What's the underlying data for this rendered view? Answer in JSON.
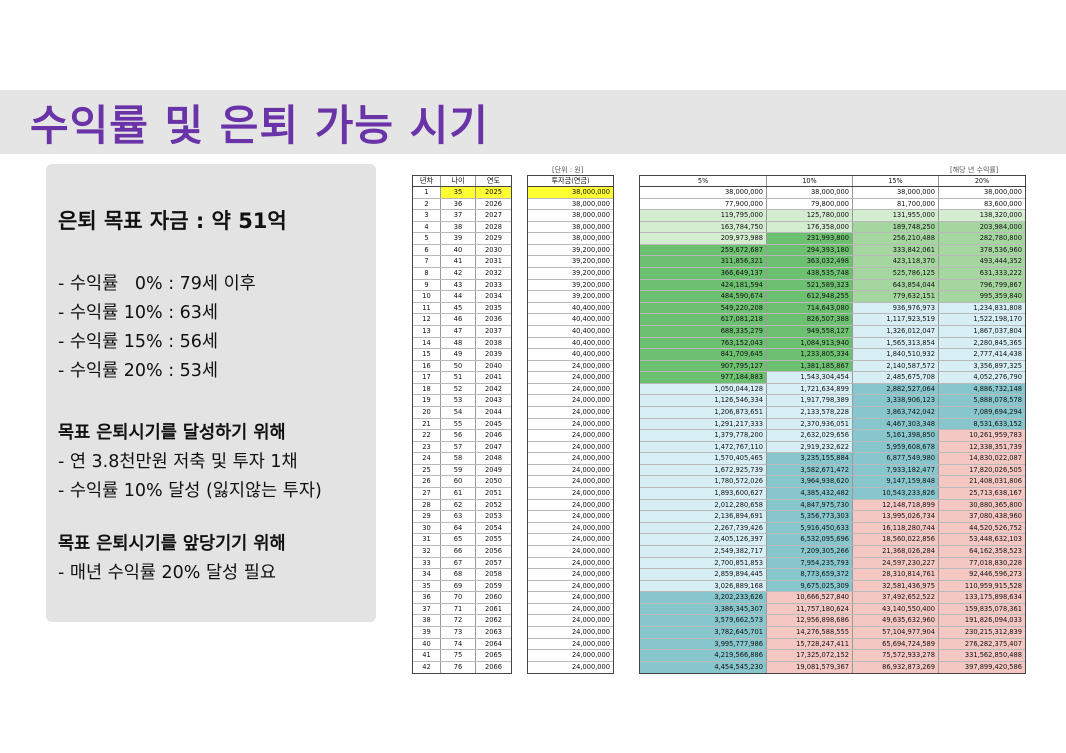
{
  "title": "수익률 및 은퇴 가능 시기",
  "summary": {
    "heading": "은퇴 목표 자금 : 약 51억",
    "lines": [
      "- 수익률   0% : 79세 이후",
      "- 수익률 10% : 63세",
      "- 수익률 15% : 56세",
      "- 수익률 20% : 53세"
    ],
    "section1_title": "목표 은퇴시기를 달성하기 위해",
    "section1_items": [
      "- 연 3.8천만원 저축 및 투자 1채",
      "- 수익률 10% 달성 (잃지않는 투자)"
    ],
    "section2_title": "목표 은퇴시기를 앞당기기 위해",
    "section2_items": [
      "- 매년 수익률 20% 달성 필요"
    ]
  },
  "table": {
    "unit_note": "[단위 : 원]",
    "right_note": "[해당 년 수익률]",
    "headers": {
      "year": "년차",
      "age": "나이",
      "cal_year": "연도",
      "invest": "투자금(연금)",
      "r5": "5%",
      "r10": "10%",
      "r15": "15%",
      "r20": "20%"
    },
    "colors": {
      "highlight_yellow": "#ffff33",
      "green_strong": "#6cc070",
      "green_mid": "#a5d6a0",
      "green_light": "#d4ecd0",
      "blue_light": "#d7eef4",
      "teal": "#87c6cc",
      "pink": "#f4c7c3"
    },
    "rows": [
      [
        "1",
        "35",
        "2025",
        "38,000,000",
        "38,000,000",
        "38,000,000",
        "38,000,000",
        "38,000,000"
      ],
      [
        "2",
        "36",
        "2026",
        "38,000,000",
        "77,900,000",
        "79,800,000",
        "81,700,000",
        "83,600,000"
      ],
      [
        "3",
        "37",
        "2027",
        "38,000,000",
        "119,795,000",
        "125,780,000",
        "131,955,000",
        "138,320,000"
      ],
      [
        "4",
        "38",
        "2028",
        "38,000,000",
        "163,784,750",
        "176,358,000",
        "189,748,250",
        "203,984,000"
      ],
      [
        "5",
        "39",
        "2029",
        "38,000,000",
        "209,973,988",
        "231,993,800",
        "256,210,488",
        "282,780,800"
      ],
      [
        "6",
        "40",
        "2030",
        "39,200,000",
        "259,672,687",
        "294,393,180",
        "333,842,061",
        "378,536,960"
      ],
      [
        "7",
        "41",
        "2031",
        "39,200,000",
        "311,856,321",
        "363,032,498",
        "423,118,370",
        "493,444,352"
      ],
      [
        "8",
        "42",
        "2032",
        "39,200,000",
        "366,649,137",
        "438,535,748",
        "525,786,125",
        "631,333,222"
      ],
      [
        "9",
        "43",
        "2033",
        "39,200,000",
        "424,181,594",
        "521,589,323",
        "643,854,044",
        "796,799,867"
      ],
      [
        "10",
        "44",
        "2034",
        "39,200,000",
        "484,590,674",
        "612,948,255",
        "779,632,151",
        "995,359,840"
      ],
      [
        "11",
        "45",
        "2035",
        "40,400,000",
        "549,220,208",
        "714,643,080",
        "936,976,973",
        "1,234,831,808"
      ],
      [
        "12",
        "46",
        "2036",
        "40,400,000",
        "617,081,218",
        "826,507,388",
        "1,117,923,519",
        "1,522,198,170"
      ],
      [
        "13",
        "47",
        "2037",
        "40,400,000",
        "688,335,279",
        "949,558,127",
        "1,326,012,047",
        "1,867,037,804"
      ],
      [
        "14",
        "48",
        "2038",
        "40,400,000",
        "763,152,043",
        "1,084,913,940",
        "1,565,313,854",
        "2,280,845,365"
      ],
      [
        "15",
        "49",
        "2039",
        "40,400,000",
        "841,709,645",
        "1,233,805,334",
        "1,840,510,932",
        "2,777,414,438"
      ],
      [
        "16",
        "50",
        "2040",
        "24,000,000",
        "907,795,127",
        "1,381,185,867",
        "2,140,587,572",
        "3,356,897,325"
      ],
      [
        "17",
        "51",
        "2041",
        "24,000,000",
        "977,184,883",
        "1,543,304,454",
        "2,485,675,708",
        "4,052,276,790"
      ],
      [
        "18",
        "52",
        "2042",
        "24,000,000",
        "1,050,044,128",
        "1,721,634,899",
        "2,882,527,064",
        "4,886,732,148"
      ],
      [
        "19",
        "53",
        "2043",
        "24,000,000",
        "1,126,546,334",
        "1,917,798,389",
        "3,338,906,123",
        "5,888,078,578"
      ],
      [
        "20",
        "54",
        "2044",
        "24,000,000",
        "1,206,873,651",
        "2,133,578,228",
        "3,863,742,042",
        "7,089,694,294"
      ],
      [
        "21",
        "55",
        "2045",
        "24,000,000",
        "1,291,217,333",
        "2,370,936,051",
        "4,467,303,348",
        "8,531,633,152"
      ],
      [
        "22",
        "56",
        "2046",
        "24,000,000",
        "1,379,778,200",
        "2,632,029,656",
        "5,161,398,850",
        "10,261,959,783"
      ],
      [
        "23",
        "57",
        "2047",
        "24,000,000",
        "1,472,767,110",
        "2,919,232,622",
        "5,959,608,678",
        "12,338,351,739"
      ],
      [
        "24",
        "58",
        "2048",
        "24,000,000",
        "1,570,405,465",
        "3,235,155,884",
        "6,877,549,980",
        "14,830,022,087"
      ],
      [
        "25",
        "59",
        "2049",
        "24,000,000",
        "1,672,925,739",
        "3,582,671,472",
        "7,933,182,477",
        "17,820,026,505"
      ],
      [
        "26",
        "60",
        "2050",
        "24,000,000",
        "1,780,572,026",
        "3,964,938,620",
        "9,147,159,848",
        "21,408,031,806"
      ],
      [
        "27",
        "61",
        "2051",
        "24,000,000",
        "1,893,600,627",
        "4,385,432,482",
        "10,543,233,826",
        "25,713,638,167"
      ],
      [
        "28",
        "62",
        "2052",
        "24,000,000",
        "2,012,280,658",
        "4,847,975,730",
        "12,148,718,899",
        "30,880,365,800"
      ],
      [
        "29",
        "63",
        "2053",
        "24,000,000",
        "2,136,894,691",
        "5,356,773,303",
        "13,995,026,734",
        "37,080,438,960"
      ],
      [
        "30",
        "64",
        "2054",
        "24,000,000",
        "2,267,739,426",
        "5,916,450,633",
        "16,118,280,744",
        "44,520,526,752"
      ],
      [
        "31",
        "65",
        "2055",
        "24,000,000",
        "2,405,126,397",
        "6,532,095,696",
        "18,560,022,856",
        "53,448,632,103"
      ],
      [
        "32",
        "66",
        "2056",
        "24,000,000",
        "2,549,382,717",
        "7,209,305,266",
        "21,368,026,284",
        "64,162,358,523"
      ],
      [
        "33",
        "67",
        "2057",
        "24,000,000",
        "2,700,851,853",
        "7,954,235,793",
        "24,597,230,227",
        "77,018,830,228"
      ],
      [
        "34",
        "68",
        "2058",
        "24,000,000",
        "2,859,894,445",
        "8,773,659,372",
        "28,310,814,761",
        "92,446,596,273"
      ],
      [
        "35",
        "69",
        "2059",
        "24,000,000",
        "3,026,889,168",
        "9,675,025,309",
        "32,581,436,975",
        "110,959,915,528"
      ],
      [
        "36",
        "70",
        "2060",
        "24,000,000",
        "3,202,233,626",
        "10,666,527,840",
        "37,492,652,522",
        "133,175,898,634"
      ],
      [
        "37",
        "71",
        "2061",
        "24,000,000",
        "3,386,345,307",
        "11,757,180,624",
        "43,140,550,400",
        "159,835,078,361"
      ],
      [
        "38",
        "72",
        "2062",
        "24,000,000",
        "3,579,662,573",
        "12,956,898,686",
        "49,635,632,960",
        "191,826,094,033"
      ],
      [
        "39",
        "73",
        "2063",
        "24,000,000",
        "3,782,645,701",
        "14,276,588,555",
        "57,104,977,904",
        "230,215,312,839"
      ],
      [
        "40",
        "74",
        "2064",
        "24,000,000",
        "3,995,777,986",
        "15,728,247,411",
        "65,694,724,589",
        "276,282,375,407"
      ],
      [
        "41",
        "75",
        "2065",
        "24,000,000",
        "4,219,566,886",
        "17,325,072,152",
        "75,572,933,278",
        "331,562,850,488"
      ],
      [
        "42",
        "76",
        "2066",
        "24,000,000",
        "4,454,545,230",
        "19,081,579,367",
        "86,932,873,269",
        "397,899,420,586"
      ]
    ]
  }
}
